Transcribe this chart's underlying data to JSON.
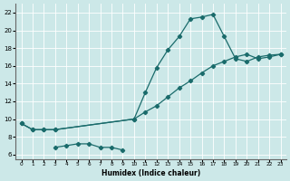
{
  "xlabel": "Humidex (Indice chaleur)",
  "xlim": [
    -0.5,
    23.5
  ],
  "ylim": [
    5.5,
    23
  ],
  "bg_color": "#cce8e8",
  "line_color": "#1a6b6b",
  "line1_x": [
    0,
    1,
    2,
    3,
    10,
    11,
    12,
    13,
    14,
    15,
    16,
    17,
    18,
    19,
    20,
    21,
    22,
    23
  ],
  "line1_y": [
    9.5,
    8.8,
    8.8,
    8.8,
    10.0,
    13.0,
    15.8,
    17.8,
    19.3,
    21.3,
    21.5,
    21.8,
    19.3,
    16.8,
    16.5,
    17.0,
    17.2,
    17.3
  ],
  "line2_x": [
    0,
    1,
    2,
    3,
    10,
    11,
    12,
    13,
    14,
    15,
    16,
    17,
    18,
    19,
    20,
    21,
    22,
    23
  ],
  "line2_y": [
    9.5,
    8.8,
    8.8,
    8.8,
    10.0,
    10.8,
    11.5,
    12.5,
    13.5,
    14.3,
    15.2,
    16.0,
    16.5,
    17.0,
    17.3,
    16.8,
    17.0,
    17.3
  ],
  "line3_x": [
    3,
    4,
    5,
    6,
    7,
    8,
    9
  ],
  "line3_y": [
    6.8,
    7.0,
    7.2,
    7.2,
    6.8,
    6.8,
    6.5
  ],
  "xticks": [
    0,
    1,
    2,
    3,
    4,
    5,
    6,
    7,
    8,
    9,
    10,
    11,
    12,
    13,
    14,
    15,
    16,
    17,
    18,
    19,
    20,
    21,
    22,
    23
  ],
  "yticks": [
    6,
    8,
    10,
    12,
    14,
    16,
    18,
    20,
    22
  ]
}
